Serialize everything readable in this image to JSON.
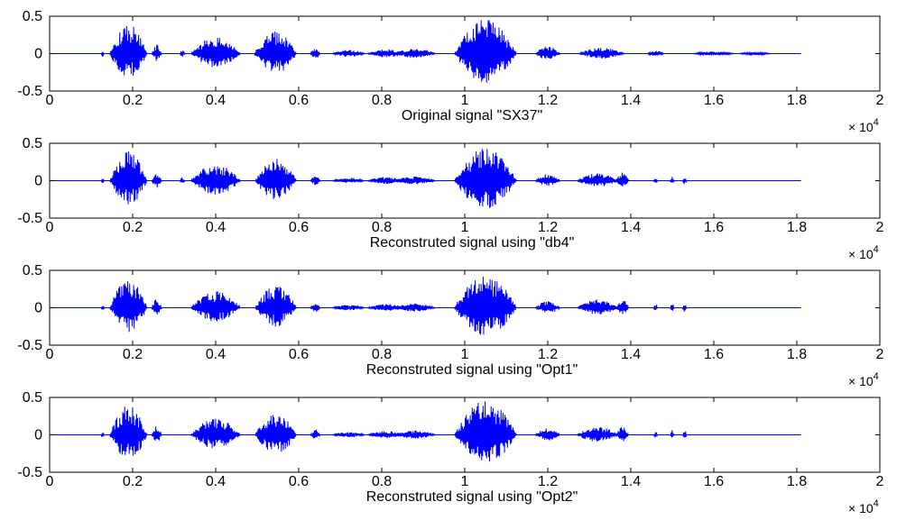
{
  "chart_data": [
    {
      "type": "line",
      "xlabel": "Original signal \"SX37\"",
      "x_multiplier": {
        "base": "× 10",
        "exp": "4"
      },
      "xlim": [
        0,
        2
      ],
      "ylim": [
        -0.5,
        0.5
      ],
      "xticks": [
        "0",
        "0.2",
        "0.4",
        "0.6",
        "0.8",
        "1",
        "1.2",
        "1.4",
        "1.6",
        "1.8",
        "2"
      ],
      "yticks": [
        "0.5",
        "0",
        "-0.5"
      ],
      "signal_end": 1.81,
      "color": "#0000ff",
      "bursts": [
        {
          "x": 0.128,
          "amp": 0.05,
          "width": 0.004
        },
        {
          "x": 0.152,
          "amp": 0.07,
          "width": 0.005
        },
        {
          "x": 0.19,
          "amp": 0.4,
          "width": 0.045
        },
        {
          "x": 0.258,
          "amp": 0.12,
          "width": 0.012
        },
        {
          "x": 0.32,
          "amp": 0.05,
          "width": 0.006
        },
        {
          "x": 0.352,
          "amp": 0.05,
          "width": 0.006
        },
        {
          "x": 0.4,
          "amp": 0.22,
          "width": 0.06
        },
        {
          "x": 0.5,
          "amp": 0.06,
          "width": 0.007
        },
        {
          "x": 0.545,
          "amp": 0.31,
          "width": 0.05
        },
        {
          "x": 0.64,
          "amp": 0.08,
          "width": 0.012
        },
        {
          "x": 0.72,
          "amp": 0.05,
          "width": 0.04
        },
        {
          "x": 0.81,
          "amp": 0.06,
          "width": 0.045
        },
        {
          "x": 0.88,
          "amp": 0.07,
          "width": 0.05
        },
        {
          "x": 1.05,
          "amp": 0.46,
          "width": 0.075
        },
        {
          "x": 1.2,
          "amp": 0.1,
          "width": 0.03
        },
        {
          "x": 1.33,
          "amp": 0.08,
          "width": 0.055
        },
        {
          "x": 1.46,
          "amp": 0.04,
          "width": 0.02
        },
        {
          "x": 1.6,
          "amp": 0.03,
          "width": 0.05
        },
        {
          "x": 1.7,
          "amp": 0.02,
          "width": 0.04
        }
      ]
    },
    {
      "type": "line",
      "xlabel": "Reconstruted signal using \"db4\"",
      "x_multiplier": {
        "base": "× 10",
        "exp": "4"
      },
      "xlim": [
        0,
        2
      ],
      "ylim": [
        -0.5,
        0.5
      ],
      "xticks": [
        "0",
        "0.2",
        "0.4",
        "0.6",
        "0.8",
        "1",
        "1.2",
        "1.4",
        "1.6",
        "1.8",
        "2"
      ],
      "yticks": [
        "0.5",
        "0",
        "-0.5"
      ],
      "signal_end": 1.81,
      "color": "#0000ff",
      "bursts": [
        {
          "x": 0.128,
          "amp": 0.04,
          "width": 0.004
        },
        {
          "x": 0.152,
          "amp": 0.06,
          "width": 0.005
        },
        {
          "x": 0.19,
          "amp": 0.39,
          "width": 0.045
        },
        {
          "x": 0.258,
          "amp": 0.12,
          "width": 0.012
        },
        {
          "x": 0.32,
          "amp": 0.05,
          "width": 0.006
        },
        {
          "x": 0.352,
          "amp": 0.04,
          "width": 0.006
        },
        {
          "x": 0.4,
          "amp": 0.22,
          "width": 0.06
        },
        {
          "x": 0.545,
          "amp": 0.3,
          "width": 0.05
        },
        {
          "x": 0.64,
          "amp": 0.07,
          "width": 0.012
        },
        {
          "x": 0.72,
          "amp": 0.04,
          "width": 0.04
        },
        {
          "x": 0.81,
          "amp": 0.05,
          "width": 0.045
        },
        {
          "x": 0.88,
          "amp": 0.06,
          "width": 0.05
        },
        {
          "x": 1.05,
          "amp": 0.44,
          "width": 0.075
        },
        {
          "x": 1.2,
          "amp": 0.09,
          "width": 0.03
        },
        {
          "x": 1.32,
          "amp": 0.1,
          "width": 0.05
        },
        {
          "x": 1.38,
          "amp": 0.11,
          "width": 0.015
        },
        {
          "x": 1.46,
          "amp": 0.05,
          "width": 0.005
        },
        {
          "x": 1.5,
          "amp": 0.06,
          "width": 0.005
        },
        {
          "x": 1.53,
          "amp": 0.06,
          "width": 0.005
        }
      ]
    },
    {
      "type": "line",
      "xlabel": "Reconstruted signal using \"Opt1\"",
      "x_multiplier": {
        "base": "× 10",
        "exp": "4"
      },
      "xlim": [
        0,
        2
      ],
      "ylim": [
        -0.5,
        0.5
      ],
      "xticks": [
        "0",
        "0.2",
        "0.4",
        "0.6",
        "0.8",
        "1",
        "1.2",
        "1.4",
        "1.6",
        "1.8",
        "2"
      ],
      "yticks": [
        "0.5",
        "0",
        "-0.5"
      ],
      "signal_end": 1.81,
      "color": "#0000ff",
      "bursts": [
        {
          "x": 0.128,
          "amp": 0.04,
          "width": 0.004
        },
        {
          "x": 0.152,
          "amp": 0.06,
          "width": 0.005
        },
        {
          "x": 0.19,
          "amp": 0.39,
          "width": 0.045
        },
        {
          "x": 0.258,
          "amp": 0.12,
          "width": 0.012
        },
        {
          "x": 0.352,
          "amp": 0.05,
          "width": 0.006
        },
        {
          "x": 0.4,
          "amp": 0.22,
          "width": 0.06
        },
        {
          "x": 0.545,
          "amp": 0.3,
          "width": 0.05
        },
        {
          "x": 0.64,
          "amp": 0.07,
          "width": 0.012
        },
        {
          "x": 0.72,
          "amp": 0.04,
          "width": 0.04
        },
        {
          "x": 0.81,
          "amp": 0.05,
          "width": 0.045
        },
        {
          "x": 0.88,
          "amp": 0.06,
          "width": 0.05
        },
        {
          "x": 1.05,
          "amp": 0.45,
          "width": 0.075
        },
        {
          "x": 1.2,
          "amp": 0.09,
          "width": 0.03
        },
        {
          "x": 1.32,
          "amp": 0.11,
          "width": 0.05
        },
        {
          "x": 1.38,
          "amp": 0.11,
          "width": 0.015
        },
        {
          "x": 1.46,
          "amp": 0.05,
          "width": 0.005
        },
        {
          "x": 1.5,
          "amp": 0.07,
          "width": 0.005
        },
        {
          "x": 1.53,
          "amp": 0.07,
          "width": 0.005
        }
      ]
    },
    {
      "type": "line",
      "xlabel": "Reconstruted signal using \"Opt2\"",
      "x_multiplier": {
        "base": "× 10",
        "exp": "4"
      },
      "xlim": [
        0,
        2
      ],
      "ylim": [
        -0.5,
        0.5
      ],
      "xticks": [
        "0",
        "0.2",
        "0.4",
        "0.6",
        "0.8",
        "1",
        "1.2",
        "1.4",
        "1.6",
        "1.8",
        "2"
      ],
      "yticks": [
        "0.5",
        "0",
        "-0.5"
      ],
      "signal_end": 1.81,
      "color": "#0000ff",
      "bursts": [
        {
          "x": 0.128,
          "amp": 0.05,
          "width": 0.004
        },
        {
          "x": 0.152,
          "amp": 0.06,
          "width": 0.005
        },
        {
          "x": 0.19,
          "amp": 0.4,
          "width": 0.045
        },
        {
          "x": 0.258,
          "amp": 0.12,
          "width": 0.012
        },
        {
          "x": 0.352,
          "amp": 0.05,
          "width": 0.006
        },
        {
          "x": 0.4,
          "amp": 0.22,
          "width": 0.06
        },
        {
          "x": 0.545,
          "amp": 0.3,
          "width": 0.05
        },
        {
          "x": 0.64,
          "amp": 0.07,
          "width": 0.012
        },
        {
          "x": 0.72,
          "amp": 0.04,
          "width": 0.04
        },
        {
          "x": 0.81,
          "amp": 0.05,
          "width": 0.045
        },
        {
          "x": 0.88,
          "amp": 0.06,
          "width": 0.05
        },
        {
          "x": 1.05,
          "amp": 0.46,
          "width": 0.075
        },
        {
          "x": 1.2,
          "amp": 0.09,
          "width": 0.03
        },
        {
          "x": 1.32,
          "amp": 0.11,
          "width": 0.05
        },
        {
          "x": 1.38,
          "amp": 0.11,
          "width": 0.015
        },
        {
          "x": 1.46,
          "amp": 0.05,
          "width": 0.005
        },
        {
          "x": 1.5,
          "amp": 0.07,
          "width": 0.005
        },
        {
          "x": 1.53,
          "amp": 0.06,
          "width": 0.005
        }
      ]
    }
  ]
}
